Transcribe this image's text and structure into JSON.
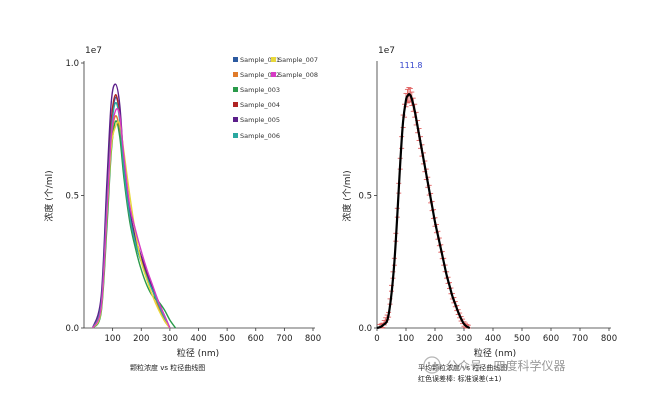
{
  "chart_data": [
    {
      "type": "line",
      "sci_label": "1e7",
      "xlabel": "粒径 (nm)",
      "ylabel": "浓度 (个/ml)",
      "caption": "颗粒浓度 vs 粒径曲线图",
      "xlim": [
        0,
        800
      ],
      "ylim": [
        0,
        1.0
      ],
      "xticks": [
        "100",
        "200",
        "300",
        "400",
        "500",
        "600",
        "700",
        "800"
      ],
      "yticks": [
        "0.0",
        "0.5",
        "1.0"
      ],
      "grid": false,
      "legend_position": "top-right",
      "series": [
        {
          "name": "Sample_001",
          "color": "#2c5aa0",
          "x": [
            30,
            60,
            80,
            95,
            110,
            125,
            140,
            160,
            180,
            200,
            220,
            240,
            260,
            280,
            300
          ],
          "y": [
            0.0,
            0.1,
            0.45,
            0.75,
            0.87,
            0.8,
            0.6,
            0.42,
            0.32,
            0.25,
            0.2,
            0.15,
            0.1,
            0.04,
            0.0
          ]
        },
        {
          "name": "Sample_002",
          "color": "#e07b2a",
          "x": [
            30,
            60,
            80,
            95,
            110,
            125,
            140,
            160,
            180,
            200,
            220,
            240,
            260,
            280,
            300
          ],
          "y": [
            0.0,
            0.08,
            0.4,
            0.7,
            0.8,
            0.74,
            0.58,
            0.44,
            0.34,
            0.26,
            0.2,
            0.14,
            0.08,
            0.03,
            0.0
          ]
        },
        {
          "name": "Sample_003",
          "color": "#2a9a4a",
          "x": [
            30,
            60,
            80,
            95,
            110,
            125,
            140,
            160,
            180,
            200,
            220,
            240,
            260,
            280,
            300,
            320
          ],
          "y": [
            0.0,
            0.06,
            0.38,
            0.66,
            0.78,
            0.72,
            0.56,
            0.4,
            0.3,
            0.22,
            0.16,
            0.12,
            0.1,
            0.07,
            0.03,
            0.0
          ]
        },
        {
          "name": "Sample_004",
          "color": "#b02424",
          "x": [
            30,
            60,
            80,
            95,
            110,
            125,
            140,
            160,
            180,
            200,
            220,
            240,
            260,
            280,
            300
          ],
          "y": [
            0.0,
            0.1,
            0.5,
            0.78,
            0.88,
            0.8,
            0.6,
            0.42,
            0.33,
            0.26,
            0.2,
            0.14,
            0.09,
            0.04,
            0.0
          ]
        },
        {
          "name": "Sample_005",
          "color": "#5b1e8a",
          "x": [
            30,
            60,
            80,
            95,
            110,
            125,
            140,
            160,
            180,
            200,
            220,
            240,
            260,
            280,
            300
          ],
          "y": [
            0.0,
            0.12,
            0.55,
            0.85,
            0.92,
            0.84,
            0.62,
            0.44,
            0.34,
            0.27,
            0.21,
            0.15,
            0.1,
            0.05,
            0.0
          ]
        },
        {
          "name": "Sample_006",
          "color": "#2aa8a0",
          "x": [
            30,
            60,
            80,
            95,
            110,
            125,
            140,
            160,
            180,
            200,
            220,
            240,
            260,
            280,
            300
          ],
          "y": [
            0.0,
            0.09,
            0.46,
            0.74,
            0.85,
            0.78,
            0.59,
            0.42,
            0.32,
            0.25,
            0.19,
            0.14,
            0.09,
            0.04,
            0.0
          ]
        },
        {
          "name": "Sample_007",
          "color": "#e8d83a",
          "x": [
            30,
            60,
            80,
            95,
            110,
            125,
            140,
            160,
            180,
            200,
            220,
            240,
            260,
            280,
            300
          ],
          "y": [
            0.0,
            0.07,
            0.42,
            0.68,
            0.76,
            0.77,
            0.66,
            0.5,
            0.36,
            0.25,
            0.18,
            0.12,
            0.07,
            0.03,
            0.0
          ]
        },
        {
          "name": "Sample_008",
          "color": "#d63ac4",
          "x": [
            30,
            60,
            80,
            95,
            110,
            125,
            140,
            160,
            180,
            200,
            220,
            240,
            260,
            280,
            300
          ],
          "y": [
            0.0,
            0.08,
            0.44,
            0.72,
            0.82,
            0.8,
            0.64,
            0.46,
            0.37,
            0.29,
            0.22,
            0.16,
            0.1,
            0.05,
            0.0
          ]
        }
      ]
    },
    {
      "type": "line",
      "sci_label": "1e7",
      "xlabel": "粒径 (nm)",
      "ylabel": "浓度 (个/ml)",
      "caption": "平均颗粒浓度 vs 粒径曲线图",
      "caption2": "红色误差棒: 标准误差(±1)",
      "peak_label": "111.8",
      "xlim": [
        0,
        800
      ],
      "ylim": [
        0,
        1.0
      ],
      "xticks": [
        "0",
        "100",
        "200",
        "300",
        "400",
        "500",
        "600",
        "700",
        "800"
      ],
      "yticks": [
        "0.0",
        "0.5"
      ],
      "grid": false,
      "series": [
        {
          "color": "#000000",
          "x": [
            0,
            20,
            40,
            60,
            80,
            90,
            100,
            105,
            110,
            112,
            115,
            120,
            130,
            140,
            150,
            160,
            170,
            180,
            190,
            200,
            210,
            220,
            230,
            240,
            250,
            260,
            270,
            280,
            290,
            300,
            310,
            320
          ],
          "y": [
            0.0,
            0.01,
            0.05,
            0.25,
            0.62,
            0.78,
            0.86,
            0.875,
            0.882,
            0.882,
            0.878,
            0.865,
            0.82,
            0.76,
            0.7,
            0.64,
            0.58,
            0.52,
            0.46,
            0.4,
            0.35,
            0.3,
            0.25,
            0.2,
            0.16,
            0.12,
            0.09,
            0.06,
            0.035,
            0.015,
            0.005,
            0.0
          ]
        }
      ]
    }
  ],
  "watermark": {
    "text": "公众号 · 四度科学仪器"
  }
}
